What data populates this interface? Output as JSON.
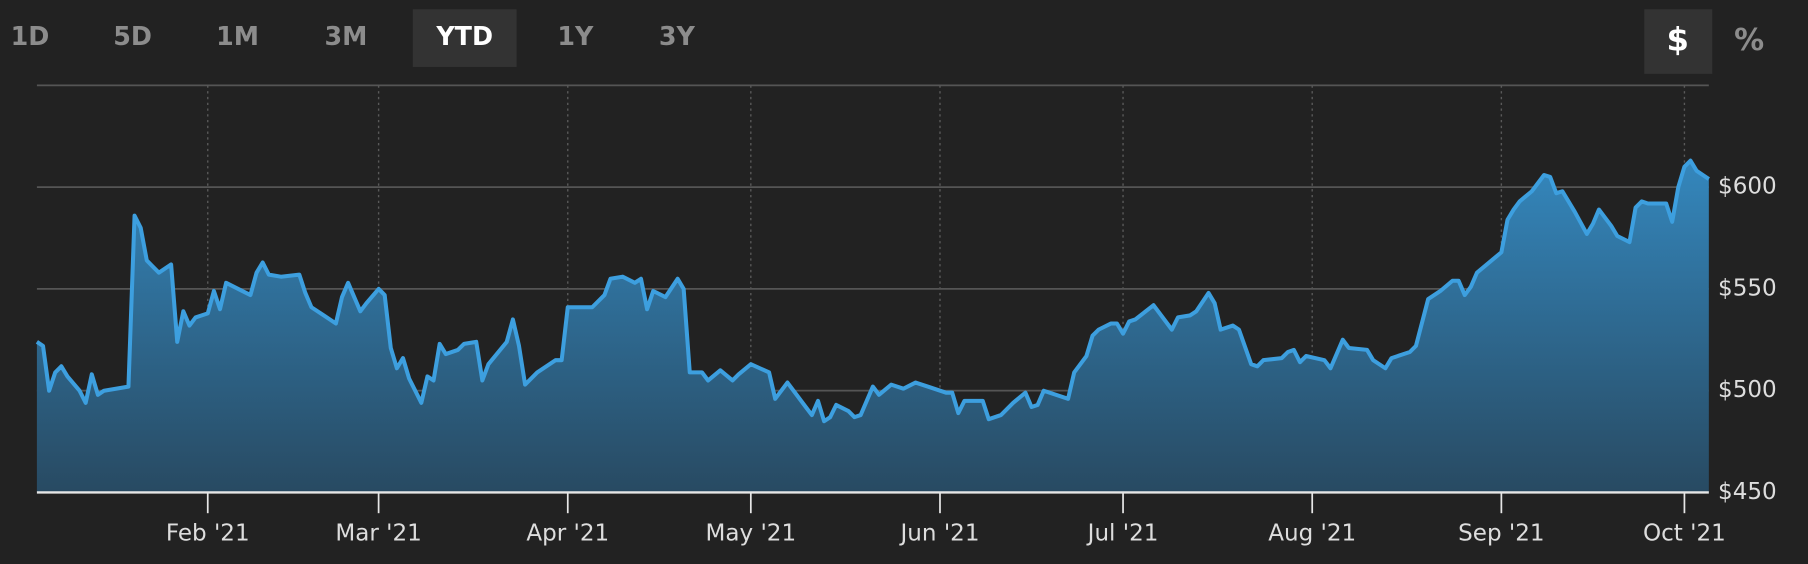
{
  "controls": {
    "ranges": [
      "1D",
      "5D",
      "1M",
      "3M",
      "YTD",
      "1Y",
      "3Y"
    ],
    "units": [
      "$",
      "%"
    ]
  },
  "chart_data": {
    "type": "area",
    "color": "#3d9fdf",
    "grid": true,
    "x": [
      0,
      1,
      2,
      3,
      4,
      5,
      7,
      8,
      9,
      10,
      11,
      15,
      16,
      17,
      18,
      19,
      20,
      22,
      23,
      24,
      25,
      26,
      28,
      29,
      30,
      31,
      33,
      35,
      36,
      37,
      38,
      40,
      43,
      44,
      45,
      47,
      49,
      50,
      51,
      52,
      53,
      54,
      56,
      57,
      58,
      59,
      60,
      61,
      63,
      64,
      65,
      66,
      67,
      69,
      70,
      72,
      73,
      74,
      77,
      78,
      79,
      80,
      82,
      85,
      86,
      87,
      91,
      93,
      94,
      96,
      98,
      99,
      100,
      101,
      103,
      105,
      106,
      107,
      109,
      110,
      112,
      114,
      115,
      117,
      120,
      121,
      123,
      126,
      127,
      128,
      129,
      130,
      131,
      133,
      134,
      135,
      137,
      138,
      140,
      142,
      144,
      146,
      149,
      150,
      151,
      152,
      155,
      156,
      158,
      160,
      162,
      163,
      164,
      165,
      169,
      170,
      172,
      173,
      174,
      176,
      177,
      178,
      179,
      180,
      183,
      186,
      187,
      189,
      190,
      192,
      193,
      194,
      196,
      197,
      199,
      200,
      201,
      204,
      205,
      206,
      207,
      208,
      211,
      212,
      214,
      215,
      218,
      219,
      221,
      222,
      225,
      226,
      228,
      230,
      232,
      233,
      234,
      235,
      236,
      240,
      241,
      242,
      243,
      245,
      247,
      248,
      249,
      250,
      252,
      254,
      255,
      256,
      258,
      259,
      261,
      262,
      263,
      264,
      267,
      268,
      269,
      270,
      271,
      272,
      274
    ],
    "values": [
      524,
      522,
      500,
      509,
      512,
      507,
      500,
      494,
      508,
      498,
      500,
      502,
      586,
      580,
      564,
      561,
      558,
      562,
      524,
      539,
      532,
      536,
      538,
      549,
      540,
      553,
      550,
      547,
      558,
      563,
      557,
      556,
      557,
      548,
      541,
      537,
      533,
      546,
      553,
      546,
      539,
      543,
      550,
      547,
      521,
      511,
      516,
      506,
      494,
      507,
      505,
      523,
      518,
      520,
      523,
      524,
      505,
      513,
      524,
      535,
      522,
      503,
      509,
      515,
      515,
      541,
      541,
      547,
      555,
      556,
      553,
      555,
      540,
      549,
      546,
      555,
      550,
      509,
      509,
      505,
      510,
      505,
      508,
      513,
      509,
      496,
      504,
      492,
      488,
      495,
      485,
      487,
      493,
      490,
      487,
      488,
      502,
      498,
      503,
      501,
      504,
      502,
      499,
      499,
      489,
      495,
      495,
      486,
      488,
      494,
      499,
      492,
      493,
      500,
      496,
      509,
      517,
      527,
      530,
      533,
      533,
      528,
      534,
      535,
      542,
      530,
      536,
      537,
      539,
      548,
      543,
      530,
      532,
      530,
      513,
      512,
      515,
      516,
      519,
      520,
      514,
      517,
      515,
      511,
      525,
      521,
      520,
      515,
      511,
      516,
      519,
      522,
      545,
      549,
      554,
      554,
      547,
      551,
      558,
      568,
      584,
      589,
      593,
      598,
      606,
      605,
      597,
      598,
      588,
      577,
      582,
      589,
      581,
      576,
      573,
      590,
      593,
      592,
      592,
      583,
      600,
      610,
      613,
      608,
      604
    ],
    "xlim": [
      0,
      274
    ],
    "xticks": [
      {
        "value": 28,
        "label": "Feb '21"
      },
      {
        "value": 56,
        "label": "Mar '21"
      },
      {
        "value": 87,
        "label": "Apr '21"
      },
      {
        "value": 117,
        "label": "May '21"
      },
      {
        "value": 148,
        "label": "Jun '21"
      },
      {
        "value": 178,
        "label": "Jul '21"
      },
      {
        "value": 209,
        "label": "Aug '21"
      },
      {
        "value": 240,
        "label": "Sep '21"
      },
      {
        "value": 270,
        "label": "Oct '21"
      }
    ],
    "ylim": [
      450,
      650
    ],
    "yticks": [
      {
        "value": 450,
        "label": "$450"
      },
      {
        "value": 500,
        "label": "$500"
      },
      {
        "value": 550,
        "label": "$550"
      },
      {
        "value": 600,
        "label": "$600"
      }
    ]
  }
}
